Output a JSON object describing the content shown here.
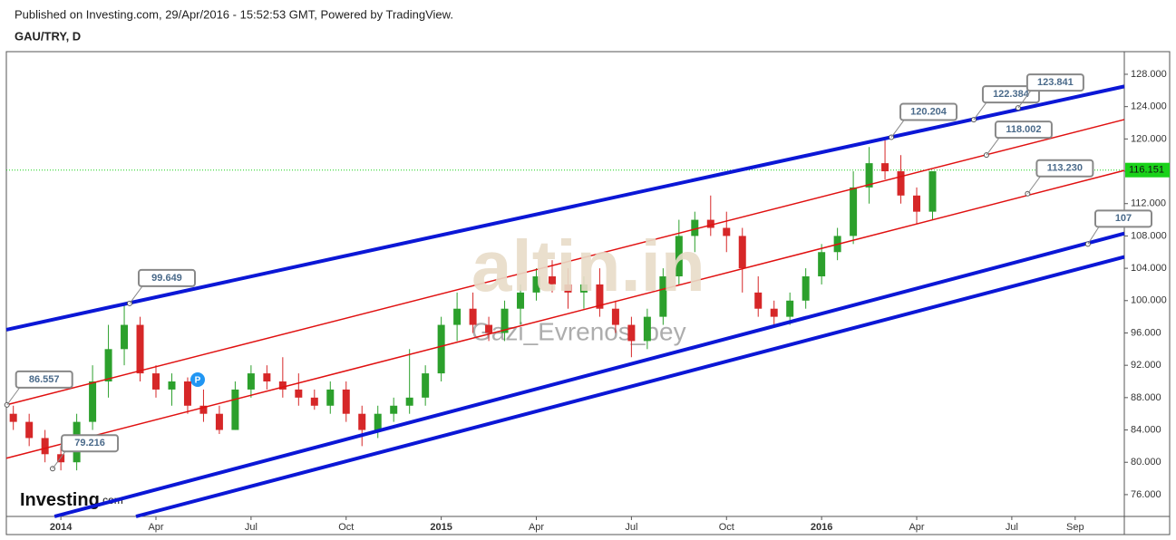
{
  "header": {
    "published": "Published on Investing.com, 29/Apr/2016 - 15:52:53 GMT, Powered by TradingView.",
    "symbol": "GAU/TRY, D"
  },
  "chart_data": {
    "type": "candlestick",
    "up_color": "#2ca02c",
    "down_color": "#d62728",
    "xlim": [
      -1.72,
      33.55
    ],
    "ylim": [
      73.3,
      130.8
    ],
    "xticks": [
      {
        "value": 0,
        "label": "2014"
      },
      {
        "value": 3,
        "label": "Apr"
      },
      {
        "value": 6,
        "label": "Jul"
      },
      {
        "value": 9,
        "label": "Oct"
      },
      {
        "value": 12,
        "label": "2015"
      },
      {
        "value": 15,
        "label": "Apr"
      },
      {
        "value": 18,
        "label": "Jul"
      },
      {
        "value": 21,
        "label": "Oct"
      },
      {
        "value": 24,
        "label": "2016"
      },
      {
        "value": 27,
        "label": "Apr"
      },
      {
        "value": 30,
        "label": "Jul"
      },
      {
        "value": 32,
        "label": "Sep"
      }
    ],
    "yticks": [
      {
        "value": 76,
        "label": "76.000"
      },
      {
        "value": 80,
        "label": "80.000"
      },
      {
        "value": 84,
        "label": "84.000"
      },
      {
        "value": 88,
        "label": "88.000"
      },
      {
        "value": 92,
        "label": "92.000"
      },
      {
        "value": 96,
        "label": "96.000"
      },
      {
        "value": 100,
        "label": "100.000"
      },
      {
        "value": 104,
        "label": "104.000"
      },
      {
        "value": 108,
        "label": "108.000"
      },
      {
        "value": 112,
        "label": "112.000"
      },
      {
        "value": 116,
        "label": "116.000"
      },
      {
        "value": 120,
        "label": "120.000"
      },
      {
        "value": 124,
        "label": "124.000"
      },
      {
        "value": 128,
        "label": "128.000"
      }
    ],
    "x": [
      -1.5,
      -1,
      -0.5,
      0,
      0.5,
      1,
      1.5,
      2,
      2.5,
      3,
      3.5,
      4,
      4.5,
      5,
      5.5,
      6,
      6.5,
      7,
      7.5,
      8,
      8.5,
      9,
      9.5,
      10,
      10.5,
      11,
      11.5,
      12,
      12.5,
      13,
      13.5,
      14,
      14.5,
      15,
      15.5,
      16,
      16.5,
      17,
      17.5,
      18,
      18.5,
      19,
      19.5,
      20,
      20.5,
      21,
      21.5,
      22,
      22.5,
      23,
      23.5,
      24,
      24.5,
      25,
      25.5,
      26,
      26.5,
      27,
      27.5
    ],
    "open": [
      86,
      85,
      83,
      81,
      80,
      85,
      90,
      94,
      97,
      91,
      89,
      90,
      87,
      86,
      84,
      89,
      91,
      90,
      89,
      88,
      87,
      89,
      86,
      84,
      86,
      87,
      88,
      91,
      97,
      99,
      97,
      96,
      99,
      101,
      103,
      102,
      101,
      102,
      99,
      97,
      95,
      98,
      103,
      108,
      110,
      109,
      108,
      101,
      99,
      98,
      100,
      103,
      106,
      108,
      114,
      117,
      116,
      113,
      111
    ],
    "high": [
      87,
      86,
      84,
      82,
      86,
      92,
      97,
      99.6,
      98,
      92,
      91,
      90.5,
      89,
      87,
      90,
      92,
      92,
      93,
      91,
      89,
      90,
      90,
      87,
      87,
      88,
      94,
      92,
      98,
      101,
      101,
      98,
      100,
      102,
      104,
      105,
      104,
      103,
      104,
      100,
      98,
      99,
      104,
      110,
      111,
      113,
      111,
      109,
      103,
      100,
      101,
      104,
      107,
      109,
      116,
      119,
      120.2,
      118,
      114,
      116
    ],
    "low": [
      84,
      82,
      80,
      79,
      79,
      84,
      88,
      92,
      90,
      88,
      87,
      86,
      85,
      83.5,
      84,
      88,
      89,
      88,
      87,
      86.5,
      86,
      85,
      82,
      83,
      85,
      86,
      87,
      90,
      95,
      96,
      95,
      95,
      97,
      100,
      101,
      99,
      99,
      98,
      96,
      93,
      94,
      97,
      102,
      106,
      108,
      106,
      101,
      98,
      97,
      97,
      99,
      102,
      105,
      107,
      112,
      115,
      112,
      109.5,
      110
    ],
    "close": [
      85,
      83,
      81,
      80,
      85,
      90,
      94,
      97,
      91,
      89,
      90,
      87,
      86,
      84,
      89,
      91,
      90,
      89,
      88,
      87,
      89,
      86,
      84,
      86,
      87,
      88,
      91,
      97,
      99,
      97,
      96,
      99,
      101,
      103,
      102,
      101,
      102,
      99,
      97,
      95,
      98,
      103,
      108,
      110,
      109,
      108,
      104,
      99,
      98,
      100,
      103,
      106,
      108,
      114,
      117,
      116,
      113,
      111,
      116
    ],
    "lines": [
      {
        "color": "#0b17d6",
        "x": [
          -1.72,
          33.55
        ],
        "y": [
          96.4,
          126.5
        ]
      },
      {
        "color": "#e01010",
        "x": [
          -1.72,
          33.55
        ],
        "y": [
          87.1,
          122.4
        ]
      },
      {
        "color": "#e01010",
        "x": [
          -1.72,
          33.55
        ],
        "y": [
          80.5,
          116.1
        ]
      },
      {
        "color": "#0b17d6",
        "x": [
          -0.2,
          33.55
        ],
        "y": [
          73.3,
          108.3
        ]
      },
      {
        "color": "#0b17d6",
        "x": [
          2.37,
          33.55
        ],
        "y": [
          73.3,
          105.4
        ]
      }
    ],
    "last_price": {
      "value": 116.151,
      "label": "116.151",
      "color": "#19d219"
    },
    "annotations": [
      {
        "x": -1.7,
        "y": 87.1,
        "label": "86.557"
      },
      {
        "x": -0.26,
        "y": 79.216,
        "label": "79.216"
      },
      {
        "x": 2.17,
        "y": 99.649,
        "label": "99.649"
      },
      {
        "x": 26.2,
        "y": 120.204,
        "label": "120.204"
      },
      {
        "x": 28.8,
        "y": 122.384,
        "label": "122.384"
      },
      {
        "x": 30.2,
        "y": 123.841,
        "label": "123.841"
      },
      {
        "x": 29.2,
        "y": 118.002,
        "label": "118.002"
      },
      {
        "x": 30.5,
        "y": 113.23,
        "label": "113.230"
      },
      {
        "x": 32.4,
        "y": 107,
        "label": "107"
      }
    ],
    "watermarks": {
      "site": "altin.in",
      "user": "Gazi_Evrenos_bey",
      "logo": "Investing",
      "logo_suffix": ".com",
      "marker": "P"
    }
  }
}
